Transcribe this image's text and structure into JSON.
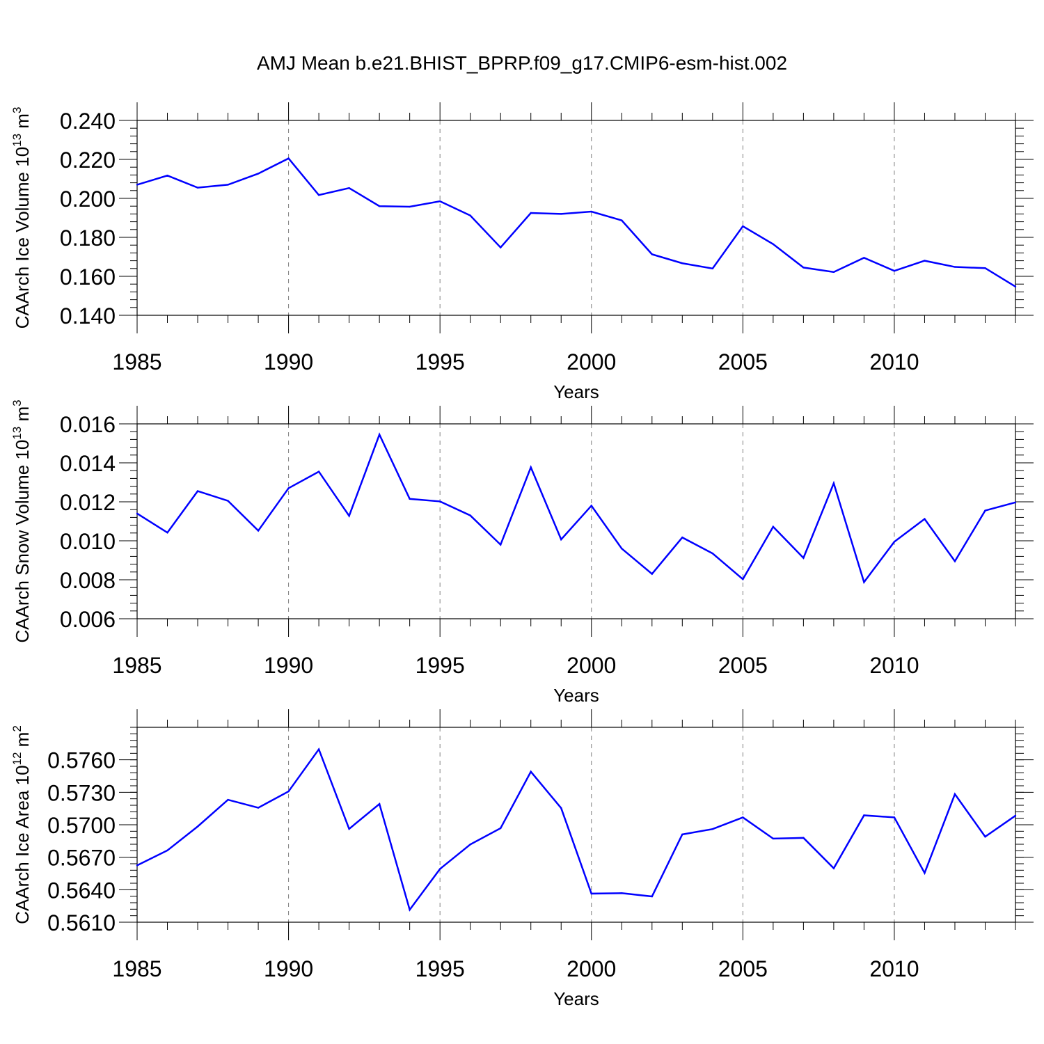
{
  "figure": {
    "title": "AMJ Mean b.e21.BHIST_BPRP.f09_g17.CMIP6-esm-hist.002",
    "line_color": "#0000ff",
    "grid_color": "#808080",
    "axis_color": "#000000"
  },
  "chart_data": [
    {
      "type": "line",
      "ylabel_main": "CAArch Ice Volume 10",
      "ylabel_exp": "13",
      "ylabel_unit": " m",
      "ylabel_unit_exp": "3",
      "xlabel": "Years",
      "xlim": [
        1985,
        2014
      ],
      "ylim": [
        0.14,
        0.24
      ],
      "x_ticks": [
        1985,
        1990,
        1995,
        2000,
        2005,
        2010
      ],
      "x_tick_labels": [
        "1985",
        "1990",
        "1995",
        "2000",
        "2005",
        "2010"
      ],
      "y_ticks": [
        0.14,
        0.16,
        0.18,
        0.2,
        0.22,
        0.24
      ],
      "y_tick_labels": [
        "0.140",
        "0.160",
        "0.180",
        "0.200",
        "0.220",
        "0.240"
      ],
      "y_minor_step": 0.004,
      "grid": "vertical dashed at major x ticks",
      "x": [
        1985,
        1986,
        1987,
        1988,
        1989,
        1990,
        1991,
        1992,
        1993,
        1994,
        1995,
        1996,
        1997,
        1998,
        1999,
        2000,
        2001,
        2002,
        2003,
        2004,
        2005,
        2006,
        2007,
        2008,
        2009,
        2010,
        2011,
        2012,
        2013,
        2014
      ],
      "values": [
        0.207,
        0.2117,
        0.2055,
        0.207,
        0.2127,
        0.2205,
        0.2017,
        0.2053,
        0.196,
        0.1957,
        0.1985,
        0.1912,
        0.1748,
        0.1925,
        0.192,
        0.1932,
        0.1887,
        0.1713,
        0.1667,
        0.164,
        0.1857,
        0.1765,
        0.1645,
        0.1622,
        0.1695,
        0.1628,
        0.168,
        0.1648,
        0.1642,
        0.1547
      ]
    },
    {
      "type": "line",
      "ylabel_main": "CAArch Snow Volume 10",
      "ylabel_exp": "13",
      "ylabel_unit": " m",
      "ylabel_unit_exp": "3",
      "xlabel": "Years",
      "xlim": [
        1985,
        2014
      ],
      "ylim": [
        0.006,
        0.016
      ],
      "x_ticks": [
        1985,
        1990,
        1995,
        2000,
        2005,
        2010
      ],
      "x_tick_labels": [
        "1985",
        "1990",
        "1995",
        "2000",
        "2005",
        "2010"
      ],
      "y_ticks": [
        0.006,
        0.008,
        0.01,
        0.012,
        0.014,
        0.016
      ],
      "y_tick_labels": [
        "0.006",
        "0.008",
        "0.010",
        "0.012",
        "0.014",
        "0.016"
      ],
      "y_minor_step": 0.0004,
      "grid": "vertical dashed at major x ticks",
      "x": [
        1985,
        1986,
        1987,
        1988,
        1989,
        1990,
        1991,
        1992,
        1993,
        1994,
        1995,
        1996,
        1997,
        1998,
        1999,
        2000,
        2001,
        2002,
        2003,
        2004,
        2005,
        2006,
        2007,
        2008,
        2009,
        2010,
        2011,
        2012,
        2013,
        2014
      ],
      "values": [
        0.0114,
        0.01042,
        0.01255,
        0.01205,
        0.01052,
        0.0127,
        0.01355,
        0.01128,
        0.01545,
        0.01215,
        0.01202,
        0.0113,
        0.0098,
        0.01377,
        0.01007,
        0.0118,
        0.0096,
        0.0083,
        0.01017,
        0.00935,
        0.00803,
        0.01072,
        0.00912,
        0.01295,
        0.00788,
        0.00995,
        0.01112,
        0.00895,
        0.01155,
        0.01197
      ]
    },
    {
      "type": "line",
      "ylabel_main": "CAArch Ice Area 10",
      "ylabel_exp": "12",
      "ylabel_unit": " m",
      "ylabel_unit_exp": "2",
      "xlabel": "Years",
      "xlim": [
        1985,
        2014
      ],
      "ylim": [
        0.561,
        0.579
      ],
      "x_ticks": [
        1985,
        1990,
        1995,
        2000,
        2005,
        2010
      ],
      "x_tick_labels": [
        "1985",
        "1990",
        "1995",
        "2000",
        "2005",
        "2010"
      ],
      "y_ticks": [
        0.561,
        0.564,
        0.567,
        0.57,
        0.573,
        0.576
      ],
      "y_tick_labels": [
        "0.5610",
        "0.5640",
        "0.5670",
        "0.5700",
        "0.5730",
        "0.5760"
      ],
      "y_minor_step": 0.0006,
      "grid": "vertical dashed at major x ticks",
      "x": [
        1985,
        1986,
        1987,
        1988,
        1989,
        1990,
        1991,
        1992,
        1993,
        1994,
        1995,
        1996,
        1997,
        1998,
        1999,
        2000,
        2001,
        2002,
        2003,
        2004,
        2005,
        2006,
        2007,
        2008,
        2009,
        2010,
        2011,
        2012,
        2013,
        2014
      ],
      "values": [
        0.56625,
        0.56763,
        0.56984,
        0.57231,
        0.57157,
        0.57308,
        0.57697,
        0.56962,
        0.57192,
        0.56215,
        0.56592,
        0.56818,
        0.56968,
        0.5749,
        0.57154,
        0.56364,
        0.56368,
        0.56338,
        0.56911,
        0.5696,
        0.57068,
        0.56872,
        0.56879,
        0.56598,
        0.57087,
        0.57068,
        0.56555,
        0.57283,
        0.5689,
        0.57084
      ]
    }
  ]
}
